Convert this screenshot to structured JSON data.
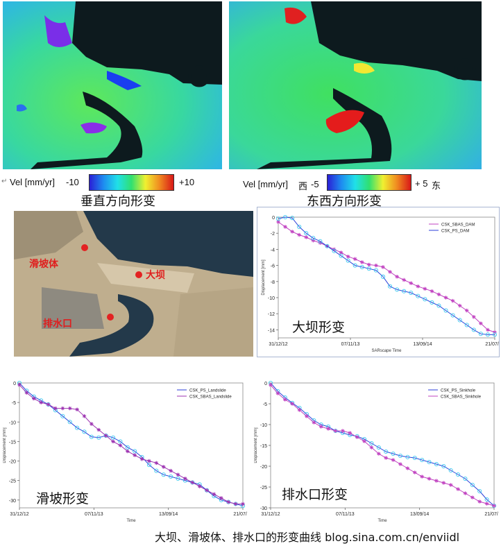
{
  "top_maps": {
    "vertical": {
      "colorbar_label": "Vel [mm/yr]",
      "min_label": "-10",
      "max_label": "+10",
      "caption": "垂直方向形变"
    },
    "eastwest": {
      "colorbar_label": "Vel [mm/yr]",
      "west_label": "西",
      "min_label": "-5",
      "max_label": "+ 5",
      "east_label": "东",
      "caption": "东西方向形变"
    },
    "colorbar_colors": [
      "#2a1fd6",
      "#1e8cf0",
      "#20e0e8",
      "#30e070",
      "#f0f030",
      "#f08a20",
      "#d81818"
    ]
  },
  "satellite_map": {
    "labels": {
      "landslide": "滑坡体",
      "dam": "大坝",
      "outlet": "排水口"
    },
    "marker_color": "#e32222"
  },
  "chart_data": [
    {
      "type": "line",
      "overlay_label": "大坝形变",
      "xlabel": "SARscape Time",
      "ylabel": "Displacement [mm]",
      "x_tick_labels": [
        "31/12/12",
        "07/11/13",
        "13/09/14",
        "21/07/15"
      ],
      "ylim": [
        -15,
        0
      ],
      "y_ticks": [
        -14,
        -12,
        -10,
        -8,
        -6,
        -4,
        -2,
        0
      ],
      "legend_placement": "top-right",
      "legend": [
        "CSK_SBAS_DAM",
        "CSK_PS_DAM"
      ],
      "series": [
        {
          "name": "CSK_SBAS_DAM",
          "color": "#c040c0",
          "marker": "star",
          "x": [
            0,
            30,
            60,
            90,
            120,
            150,
            180,
            210,
            240,
            270,
            300,
            330,
            360,
            390,
            420,
            450,
            480,
            510,
            540,
            570,
            600,
            630,
            660,
            690,
            720,
            750,
            780,
            810,
            840,
            870,
            900,
            930
          ],
          "values": [
            -0.6,
            -1.2,
            -1.8,
            -2.2,
            -2.5,
            -2.9,
            -3.2,
            -3.6,
            -4.0,
            -4.4,
            -4.9,
            -5.2,
            -5.6,
            -5.9,
            -6.0,
            -6.2,
            -6.8,
            -7.4,
            -7.8,
            -8.2,
            -8.6,
            -8.9,
            -9.2,
            -9.6,
            -10.0,
            -10.4,
            -11.0,
            -11.6,
            -12.4,
            -13.2,
            -14.0,
            -14.3
          ]
        },
        {
          "name": "CSK_PS_DAM",
          "color": "#2a3ed8",
          "marker": "circle",
          "x": [
            0,
            30,
            60,
            90,
            120,
            150,
            180,
            210,
            240,
            270,
            300,
            330,
            360,
            390,
            420,
            450,
            480,
            510,
            540,
            570,
            600,
            630,
            660,
            690,
            720,
            750,
            780,
            810,
            840,
            870,
            900,
            930
          ],
          "values": [
            -0.2,
            0.0,
            -0.1,
            -1.2,
            -2.0,
            -2.6,
            -3.0,
            -3.6,
            -4.2,
            -4.8,
            -5.4,
            -6.0,
            -6.2,
            -6.4,
            -6.6,
            -7.4,
            -8.6,
            -9.0,
            -9.2,
            -9.4,
            -9.8,
            -10.2,
            -10.6,
            -11.0,
            -11.6,
            -12.2,
            -12.8,
            -13.4,
            -14.0,
            -14.5,
            -14.6,
            -14.6
          ]
        }
      ]
    },
    {
      "type": "line",
      "overlay_label": "滑坡形变",
      "xlabel": "Time",
      "ylabel": "Displacement [mm]",
      "x_tick_labels": [
        "31/12/12",
        "07/11/13",
        "13/09/14",
        "21/07/15"
      ],
      "ylim": [
        -32,
        0
      ],
      "y_ticks": [
        -30,
        -25,
        -20,
        -15,
        -10,
        -5,
        0
      ],
      "legend_placement": "top-right",
      "legend": [
        "CSK_PS_Landslide",
        "CSK_SBAS_Landslide"
      ],
      "series": [
        {
          "name": "CSK_PS_Landslide",
          "color": "#2a3ed8",
          "marker": "circle",
          "x": [
            0,
            30,
            60,
            90,
            120,
            150,
            180,
            210,
            240,
            270,
            300,
            330,
            360,
            390,
            420,
            450,
            480,
            510,
            540,
            570,
            600,
            630,
            660,
            690,
            720,
            750,
            780,
            810,
            840,
            870,
            900,
            930
          ],
          "values": [
            0.0,
            -2.0,
            -3.5,
            -4.5,
            -5.5,
            -7.0,
            -8.5,
            -10.0,
            -11.5,
            -12.5,
            -13.8,
            -14.0,
            -13.5,
            -14.0,
            -15.0,
            -16.5,
            -17.5,
            -19.0,
            -21.0,
            -22.5,
            -23.5,
            -24.0,
            -24.5,
            -25.0,
            -25.5,
            -26.0,
            -27.5,
            -29.0,
            -30.0,
            -30.5,
            -31.0,
            -31.5
          ]
        },
        {
          "name": "CSK_SBAS_Landslide",
          "color": "#9b30b0",
          "marker": "star",
          "x": [
            0,
            30,
            60,
            90,
            120,
            150,
            180,
            210,
            240,
            270,
            300,
            330,
            360,
            390,
            420,
            450,
            480,
            510,
            540,
            570,
            600,
            630,
            660,
            690,
            720,
            750,
            780,
            810,
            840,
            870,
            900,
            930
          ],
          "values": [
            -0.5,
            -2.5,
            -4.0,
            -5.0,
            -5.5,
            -6.5,
            -6.5,
            -6.5,
            -6.8,
            -8.5,
            -10.5,
            -12.0,
            -13.5,
            -15.0,
            -16.0,
            -17.5,
            -18.5,
            -19.5,
            -20.0,
            -20.5,
            -21.5,
            -22.5,
            -23.5,
            -24.5,
            -25.5,
            -26.5,
            -27.5,
            -28.5,
            -29.5,
            -30.5,
            -31.0,
            -31.0
          ]
        }
      ]
    },
    {
      "type": "line",
      "overlay_label": "排水口形变",
      "xlabel": "Time",
      "ylabel": "Displacement [mm]",
      "x_tick_labels": [
        "31/12/12",
        "07/11/13",
        "13/09/14",
        "21/07/15"
      ],
      "ylim": [
        -30,
        0
      ],
      "y_ticks": [
        -30,
        -25,
        -20,
        -15,
        -10,
        -5,
        0
      ],
      "legend_placement": "top-right",
      "legend": [
        "CSK_PS_Sinkhole",
        "CSK_SBAS_Sinkhole"
      ],
      "series": [
        {
          "name": "CSK_PS_Sinkhole",
          "color": "#2a3ed8",
          "marker": "circle",
          "x": [
            0,
            30,
            60,
            90,
            120,
            150,
            180,
            210,
            240,
            270,
            300,
            330,
            360,
            390,
            420,
            450,
            480,
            510,
            540,
            570,
            600,
            630,
            660,
            690,
            720,
            750,
            780,
            810,
            840,
            870,
            900,
            930
          ],
          "values": [
            0.0,
            -2.0,
            -3.5,
            -4.8,
            -6.0,
            -7.5,
            -9.0,
            -10.0,
            -10.5,
            -11.5,
            -12.0,
            -12.5,
            -12.8,
            -13.5,
            -14.5,
            -15.5,
            -16.5,
            -17.0,
            -17.5,
            -17.8,
            -18.0,
            -18.5,
            -19.0,
            -19.5,
            -20.0,
            -21.0,
            -22.0,
            -23.0,
            -24.5,
            -26.0,
            -28.0,
            -29.5
          ]
        },
        {
          "name": "CSK_SBAS_Sinkhole",
          "color": "#c040c0",
          "marker": "star",
          "x": [
            0,
            30,
            60,
            90,
            120,
            150,
            180,
            210,
            240,
            270,
            300,
            330,
            360,
            390,
            420,
            450,
            480,
            510,
            540,
            570,
            600,
            630,
            660,
            690,
            720,
            750,
            780,
            810,
            840,
            870,
            900,
            930
          ],
          "values": [
            -0.5,
            -2.5,
            -4.0,
            -5.0,
            -6.5,
            -8.0,
            -9.5,
            -10.5,
            -11.0,
            -11.5,
            -11.5,
            -12.0,
            -13.0,
            -14.0,
            -15.5,
            -17.0,
            -18.0,
            -18.5,
            -19.5,
            -20.5,
            -21.5,
            -22.5,
            -23.0,
            -23.5,
            -24.0,
            -24.5,
            -25.5,
            -26.5,
            -27.5,
            -28.5,
            -29.0,
            -29.5
          ]
        }
      ]
    }
  ],
  "footer": "大坝、滑坡体、排水口的形变曲线 blog.sina.com.cn/enviidl"
}
